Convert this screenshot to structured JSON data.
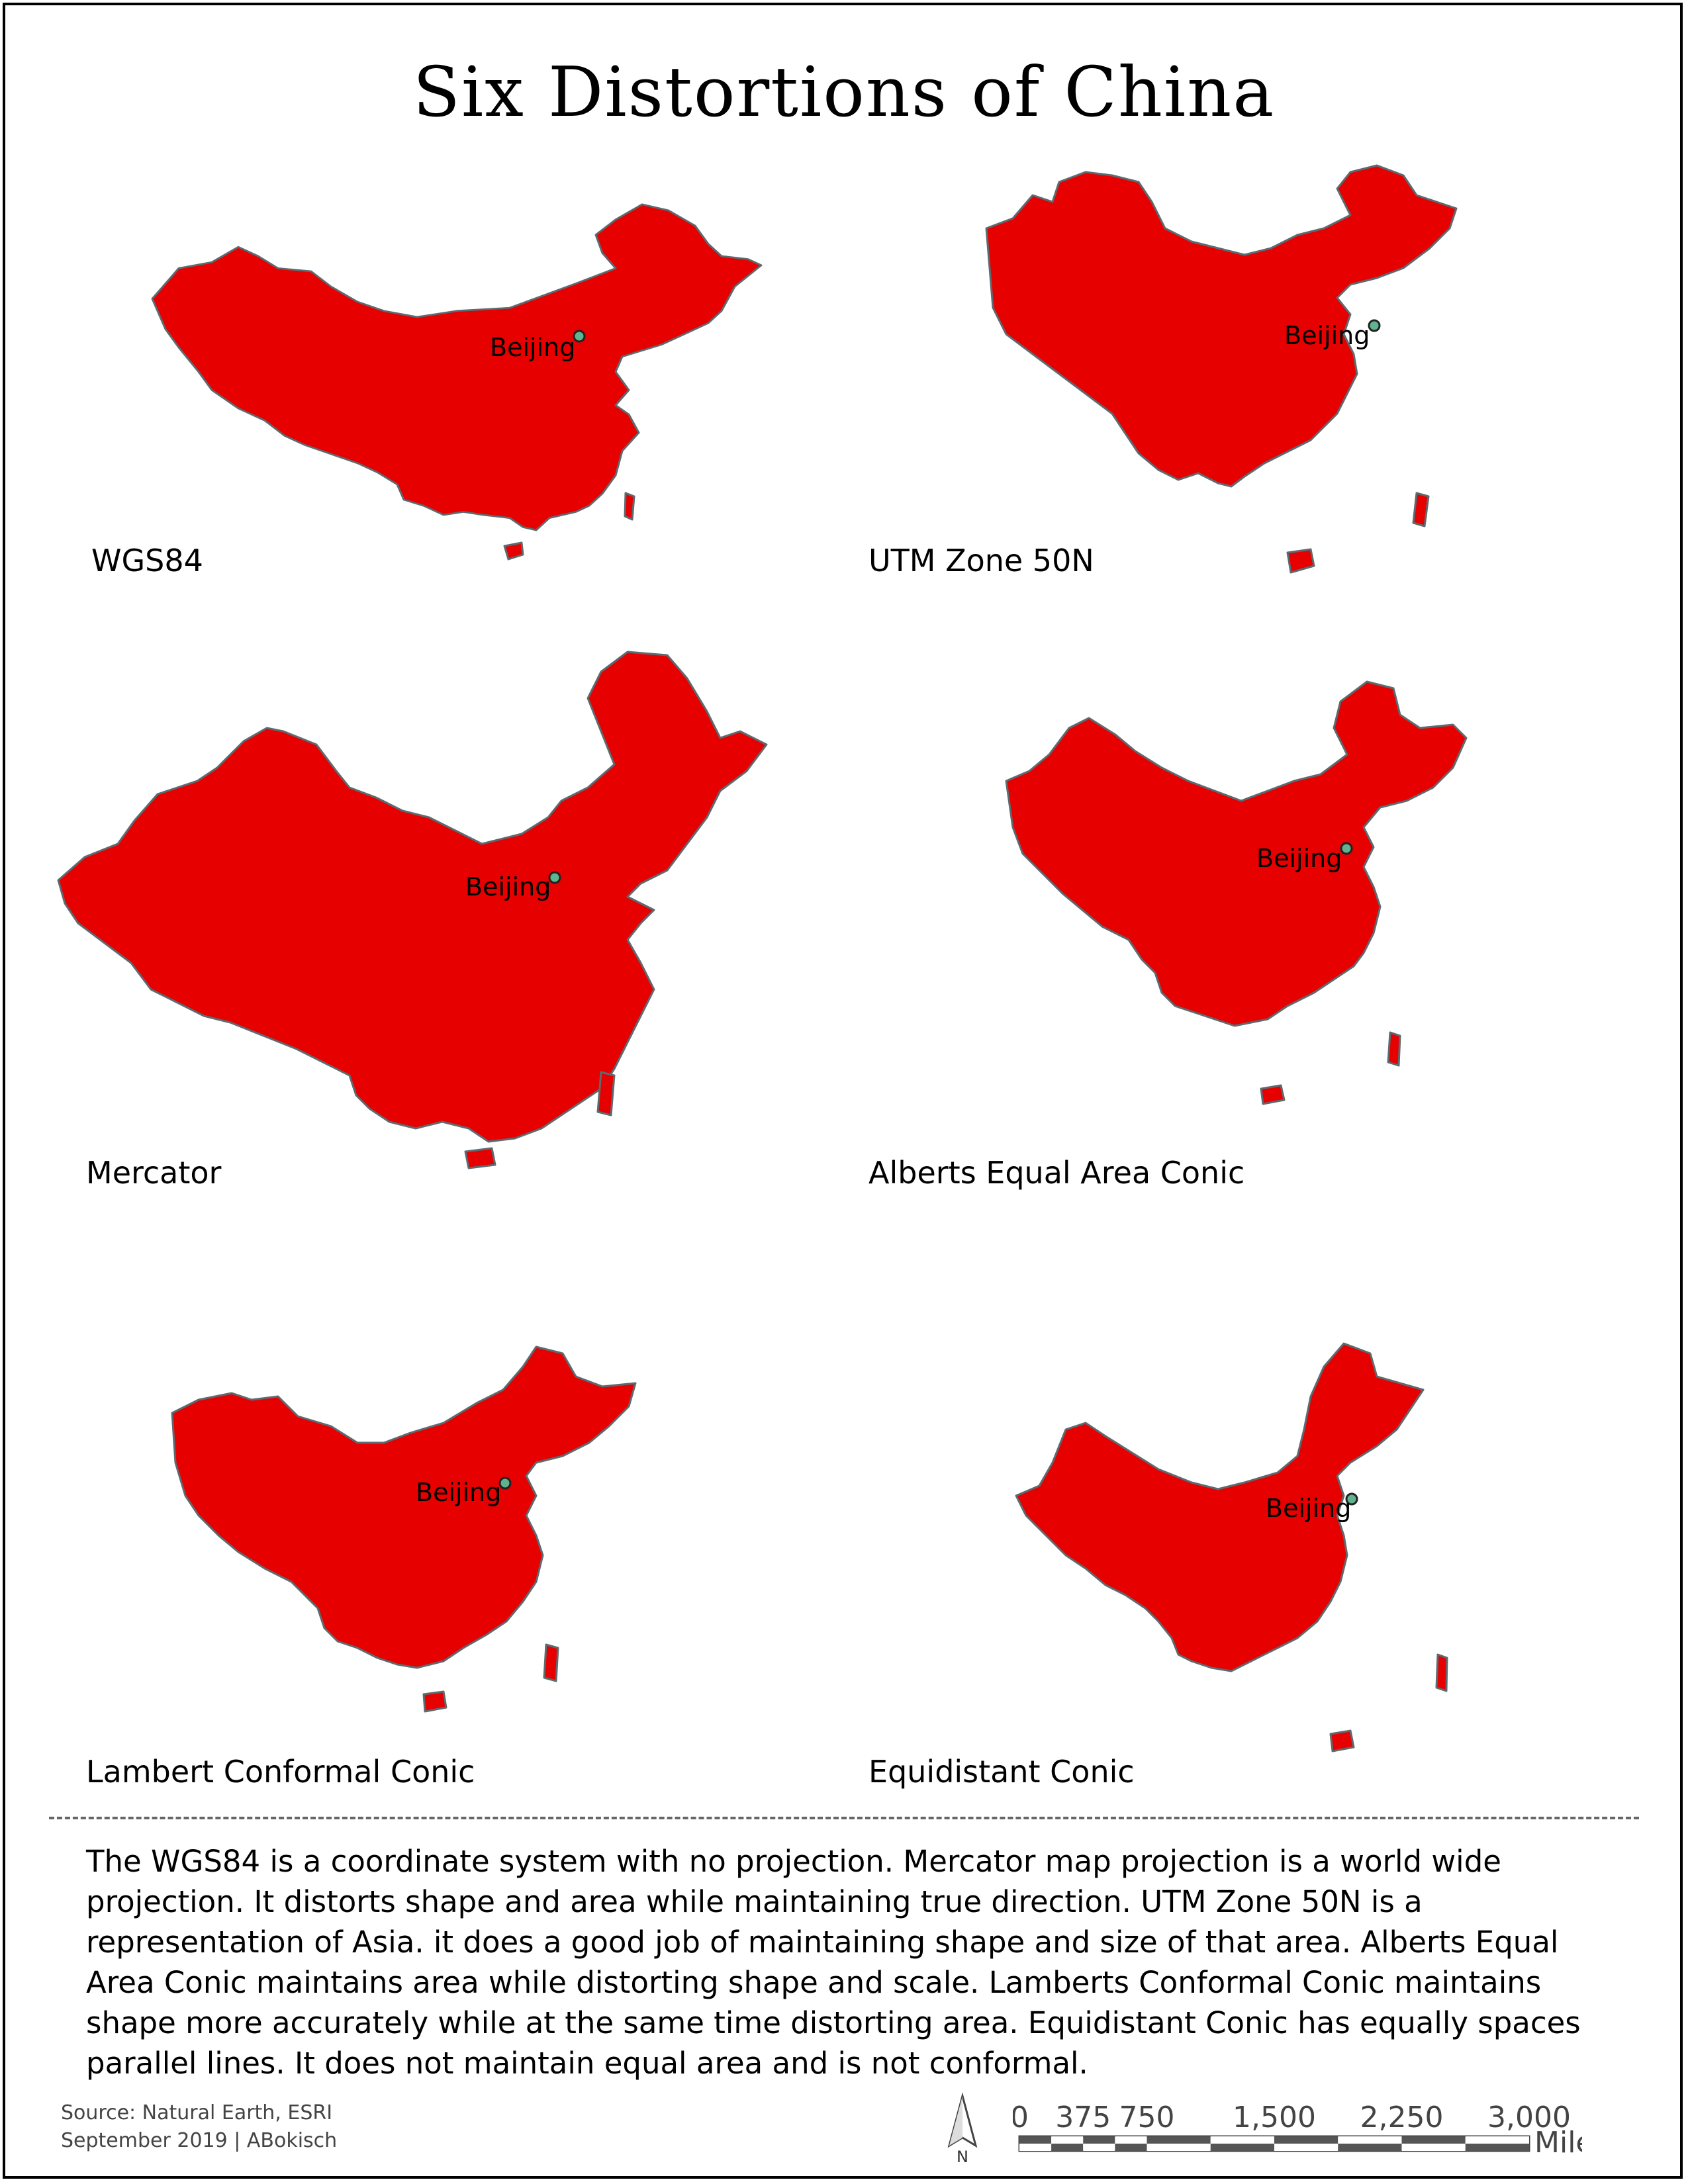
{
  "title": "Six Distortions of China",
  "capital": {
    "name": "Beijing",
    "color": "#5fb38f"
  },
  "fill_color": "#e60000",
  "border_color": "#5d6a70",
  "maps": [
    {
      "projection": "WGS84",
      "label": "WGS84"
    },
    {
      "projection": "UTM Zone 50N",
      "label": "UTM Zone 50N"
    },
    {
      "projection": "Mercator",
      "label": "Mercator"
    },
    {
      "projection": "Alberts Equal Area Conic",
      "label": "Alberts Equal Area Conic"
    },
    {
      "projection": "Lambert Conformal Conic",
      "label": "Lambert Conformal Conic"
    },
    {
      "projection": "Equidistant Conic",
      "label": "Equidistant Conic"
    }
  ],
  "description": "The WGS84 is a coordinate system with no projection. Mercator map projection is a world wide projection. It distorts shape and area while maintaining true direction. UTM Zone 50N is a representation of Asia. it does a good job of maintaining shape and size of that area. Alberts Equal Area Conic maintains area while distorting shape and scale. Lamberts Conformal Conic maintains shape more accurately while at the same time distorting area. Equidistant Conic has equally spaces parallel lines. It does not maintain equal area and is not conformal.",
  "credits": {
    "source": "Source: Natural Earth, ESRI",
    "date_author": "September 2019 | ABokisch"
  },
  "north_arrow": {
    "label": "N"
  },
  "scale_bar": {
    "ticks": [
      "0",
      "375",
      "750",
      "1,500",
      "2,250",
      "3,000"
    ],
    "tick_values": [
      0,
      375,
      750,
      1500,
      2250,
      3000
    ],
    "unit": "Miles"
  }
}
